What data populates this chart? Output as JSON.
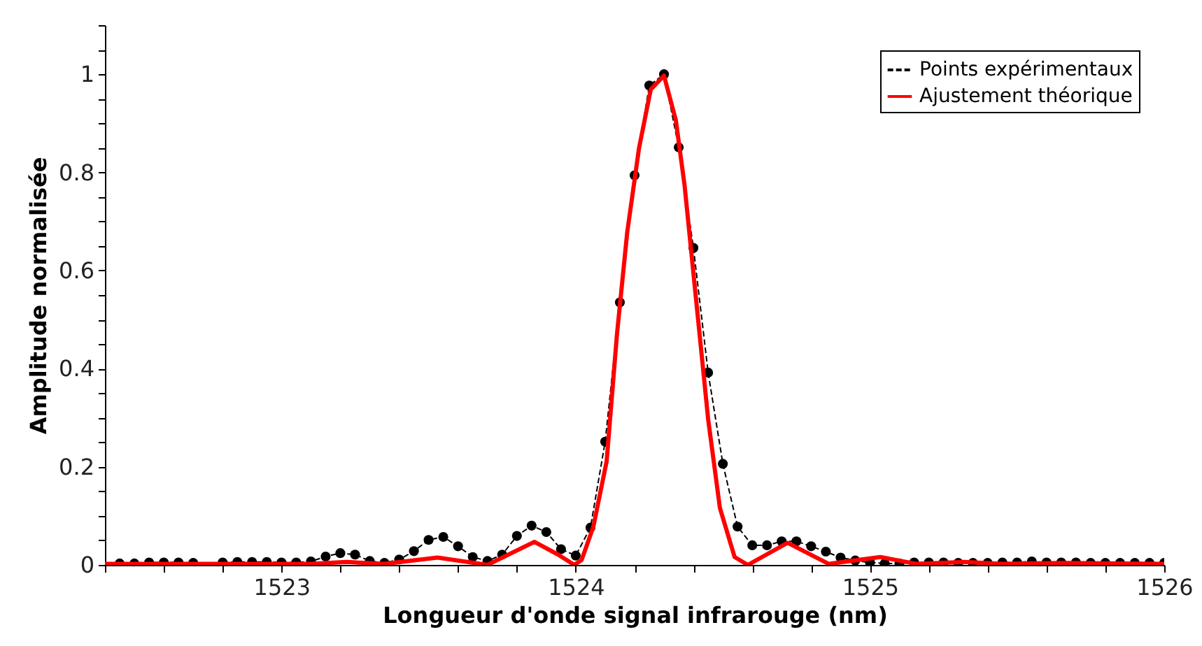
{
  "chart_data": {
    "type": "line",
    "xlabel": "Longueur d'onde signal infrarouge (nm)",
    "ylabel": "Amplitude normalisée",
    "xlim": [
      1522.4,
      1526
    ],
    "ylim": [
      0,
      1.1
    ],
    "xticks": [
      {
        "value": 1522.4,
        "label": null
      },
      {
        "value": 1522.6,
        "label": null
      },
      {
        "value": 1522.8,
        "label": null
      },
      1523,
      {
        "value": 1523.2,
        "label": null
      },
      {
        "value": 1523.4,
        "label": null
      },
      {
        "value": 1523.6,
        "label": null
      },
      {
        "value": 1523.8,
        "label": null
      },
      1524,
      {
        "value": 1524.2,
        "label": null
      },
      {
        "value": 1524.4,
        "label": null
      },
      {
        "value": 1524.6,
        "label": null
      },
      {
        "value": 1524.8,
        "label": null
      },
      1525,
      {
        "value": 1525.2,
        "label": null
      },
      {
        "value": 1525.4,
        "label": null
      },
      {
        "value": 1525.6,
        "label": null
      },
      {
        "value": 1525.8,
        "label": null
      },
      1526
    ],
    "yticks": [
      0,
      {
        "value": 0.05,
        "label": null
      },
      {
        "value": 0.1,
        "label": null
      },
      {
        "value": 0.15,
        "label": null
      },
      0.2,
      {
        "value": 0.25,
        "label": null
      },
      {
        "value": 0.3,
        "label": null
      },
      {
        "value": 0.35,
        "label": null
      },
      0.4,
      {
        "value": 0.45,
        "label": null
      },
      {
        "value": 0.5,
        "label": null
      },
      {
        "value": 0.55,
        "label": null
      },
      0.6,
      {
        "value": 0.65,
        "label": null
      },
      {
        "value": 0.7,
        "label": null
      },
      {
        "value": 0.75,
        "label": null
      },
      0.8,
      {
        "value": 0.85,
        "label": null
      },
      {
        "value": 0.9,
        "label": null
      },
      {
        "value": 0.95,
        "label": null
      },
      1,
      {
        "value": 1.05,
        "label": null
      },
      {
        "value": 1.1,
        "label": null
      }
    ],
    "grid": false,
    "legend": "top right",
    "series": [
      {
        "name": "Points expérimentaux",
        "color": "#000000",
        "marker": "circle",
        "line_style": "dashed",
        "x": [
          1522.45,
          1522.5,
          1522.55,
          1522.6,
          1522.65,
          1522.7,
          1522.75,
          1522.8,
          1522.85,
          1522.9,
          1522.95,
          1523.0,
          1523.05,
          1523.1,
          1523.15,
          1523.2,
          1523.25,
          1523.3,
          1523.35,
          1523.4,
          1523.45,
          1523.5,
          1523.55,
          1523.6,
          1523.65,
          1523.7,
          1523.75,
          1523.8,
          1523.85,
          1523.9,
          1523.95,
          1524.0,
          1524.05,
          1524.1,
          1524.15,
          1524.2,
          1524.25,
          1524.3,
          1524.35,
          1524.4,
          1524.45,
          1524.5,
          1524.55,
          1524.6,
          1524.65,
          1524.7,
          1524.75,
          1524.8,
          1524.85,
          1524.9,
          1524.95,
          1525.0,
          1525.05,
          1525.1,
          1525.15,
          1525.2,
          1525.25,
          1525.3,
          1525.35,
          1525.4,
          1525.45,
          1525.5,
          1525.55,
          1525.6,
          1525.65,
          1525.7,
          1525.75,
          1525.8,
          1525.85,
          1525.9,
          1525.95,
          1526.0
        ],
        "values": [
          0.003,
          0.003,
          0.005,
          0.005,
          0.005,
          0.004,
          null,
          0.005,
          0.006,
          0.006,
          0.006,
          0.005,
          0.005,
          0.007,
          0.017,
          0.024,
          0.021,
          0.008,
          0.004,
          0.011,
          0.028,
          0.051,
          0.057,
          0.038,
          0.016,
          0.008,
          0.021,
          0.059,
          0.08,
          0.067,
          0.032,
          0.019,
          0.076,
          0.251,
          0.535,
          0.794,
          0.977,
          1.0,
          0.851,
          0.646,
          0.392,
          0.206,
          0.078,
          0.04,
          0.04,
          0.048,
          0.048,
          0.038,
          0.027,
          0.015,
          0.009,
          0.005,
          0.003,
          0.003,
          0.005,
          0.005,
          0.005,
          0.004,
          0.004,
          0.004,
          0.005,
          0.005,
          0.007,
          0.005,
          0.005,
          0.005,
          0.004,
          0.004,
          0.004,
          0.004,
          0.004,
          0.004
        ]
      },
      {
        "name": "Ajustement théorique",
        "color": "#ff0000",
        "marker": "none",
        "line_style": "solid",
        "x": [
          1522.4,
          1523.1,
          1523.22,
          1523.35,
          1523.53,
          1523.7,
          1523.86,
          1523.94,
          1523.995,
          1524.02,
          1524.06,
          1524.105,
          1524.14,
          1524.175,
          1524.215,
          1524.255,
          1524.3,
          1524.34,
          1524.37,
          1524.41,
          1524.45,
          1524.49,
          1524.54,
          1524.585,
          1524.72,
          1524.86,
          1525.035,
          1525.16,
          1525.32,
          1525.45,
          1525.65,
          1526.0
        ],
        "values": [
          0.002,
          0.002,
          0.006,
          0.002,
          0.015,
          0.0,
          0.047,
          0.021,
          0.0,
          0.01,
          0.078,
          0.211,
          0.469,
          0.678,
          0.849,
          0.969,
          0.997,
          0.907,
          0.773,
          0.535,
          0.297,
          0.116,
          0.016,
          0.0,
          0.045,
          0.002,
          0.016,
          0.002,
          0.006,
          0.002,
          0.004,
          0.002
        ]
      }
    ]
  }
}
